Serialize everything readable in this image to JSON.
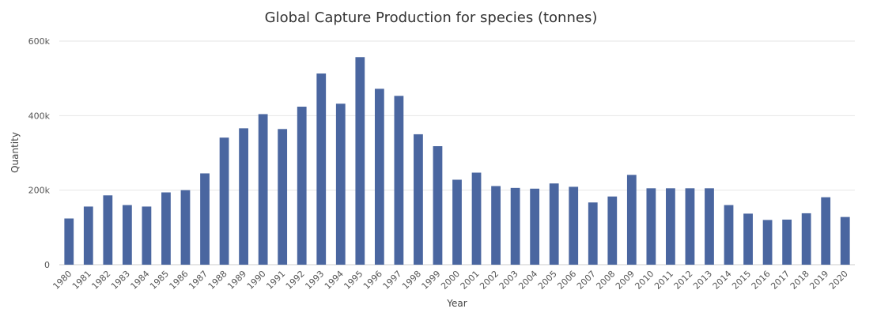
{
  "chart_data": {
    "type": "bar",
    "title": "Global Capture Production for species (tonnes)",
    "xlabel": "Year",
    "ylabel": "Quantity",
    "ylim": [
      0,
      600000
    ],
    "yticks": [
      0,
      200000,
      400000,
      600000
    ],
    "ytick_labels": [
      "0",
      "200k",
      "400k",
      "600k"
    ],
    "grid": true,
    "bar_color": "#4a66a0",
    "categories": [
      "1980",
      "1981",
      "1982",
      "1983",
      "1984",
      "1985",
      "1986",
      "1987",
      "1988",
      "1989",
      "1990",
      "1991",
      "1992",
      "1993",
      "1994",
      "1995",
      "1996",
      "1997",
      "1998",
      "1999",
      "2000",
      "2001",
      "2002",
      "2003",
      "2004",
      "2005",
      "2006",
      "2007",
      "2008",
      "2009",
      "2010",
      "2011",
      "2012",
      "2013",
      "2014",
      "2015",
      "2016",
      "2017",
      "2018",
      "2019",
      "2020"
    ],
    "values": [
      124000,
      156000,
      186000,
      160000,
      156000,
      194000,
      200000,
      245000,
      341000,
      366000,
      404000,
      364000,
      424000,
      513000,
      432000,
      557000,
      472000,
      453000,
      350000,
      318000,
      228000,
      247000,
      211000,
      206000,
      204000,
      218000,
      209000,
      167000,
      183000,
      241000,
      205000,
      205000,
      205000,
      205000,
      160000,
      137000,
      120000,
      121000,
      138000,
      181000,
      128000
    ]
  }
}
